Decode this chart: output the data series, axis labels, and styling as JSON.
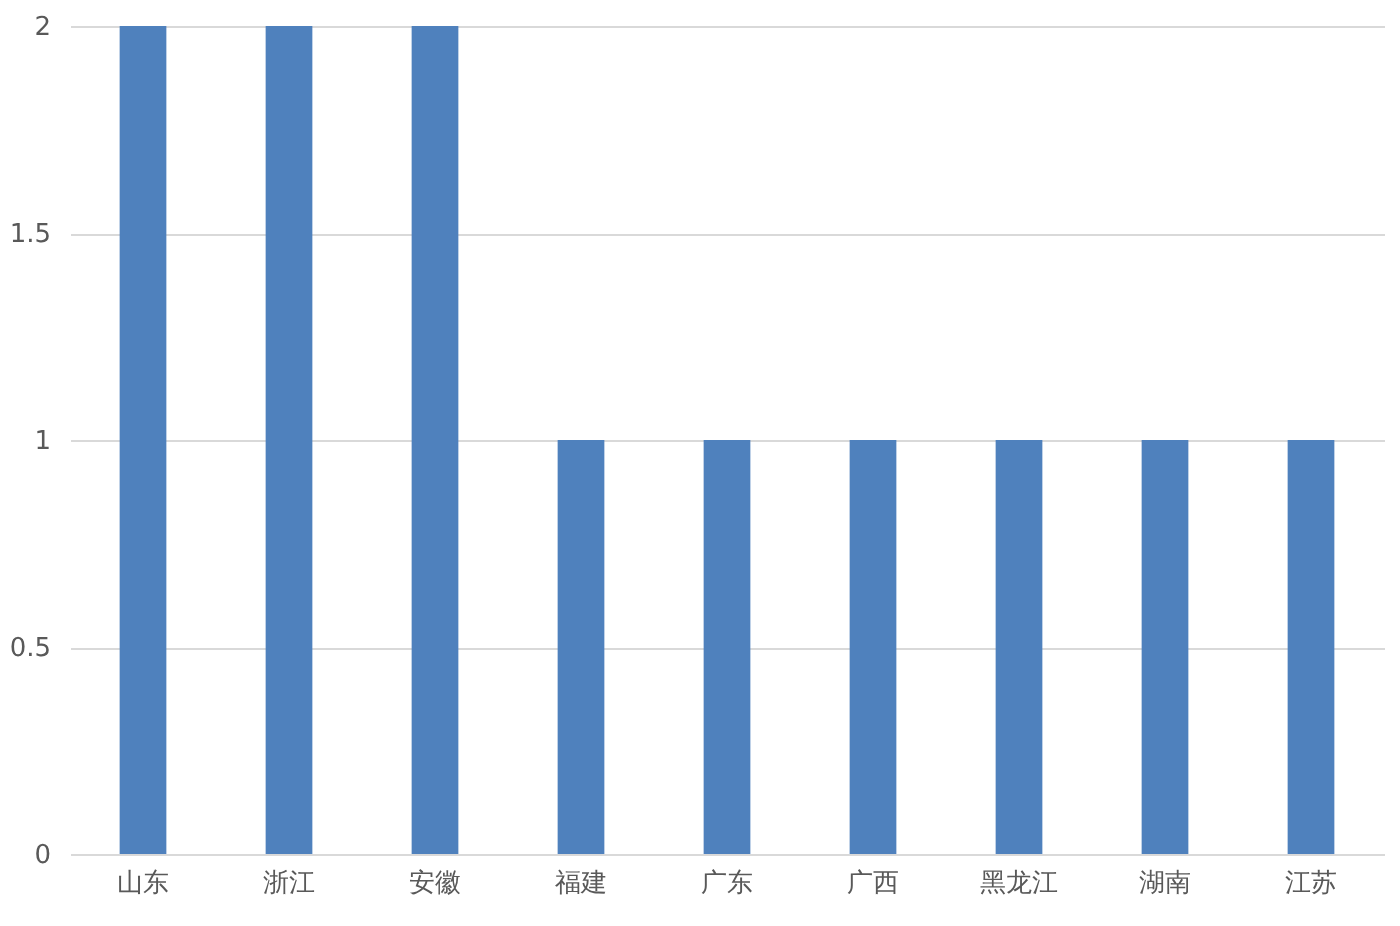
{
  "chart_data": {
    "type": "bar",
    "categories": [
      "山东",
      "浙江",
      "安徽",
      "福建",
      "广东",
      "广西",
      "黑龙江",
      "湖南",
      "江苏"
    ],
    "values": [
      2,
      2,
      2,
      1,
      1,
      1,
      1,
      1,
      1
    ],
    "color": "#4f81bd",
    "ylim": [
      0,
      2
    ],
    "yticks": [
      0,
      0.5,
      1,
      1.5,
      2
    ],
    "grid": "y"
  }
}
